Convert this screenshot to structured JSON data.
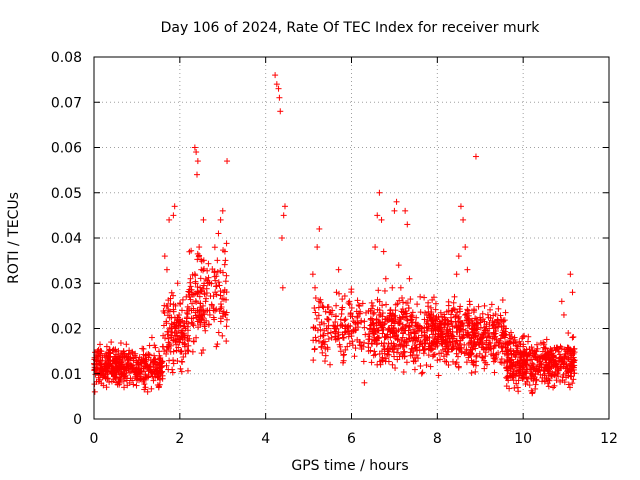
{
  "chart_data": {
    "type": "scatter",
    "title": "Day 106 of 2024, Rate Of TEC Index for receiver murk",
    "xlabel": "GPS time / hours",
    "ylabel": "ROTI / TECUs",
    "xlim": [
      0,
      12
    ],
    "ylim": [
      0,
      0.08
    ],
    "x_ticks": [
      0,
      2,
      4,
      6,
      8,
      10,
      12
    ],
    "x_tick_labels": [
      "0",
      "2",
      "4",
      "6",
      "8",
      "10",
      "12"
    ],
    "y_ticks": [
      0,
      0.01,
      0.02,
      0.03,
      0.04,
      0.05,
      0.06,
      0.07,
      0.08
    ],
    "y_tick_labels": [
      "0",
      "0.01",
      "0.02",
      "0.03",
      "0.04",
      "0.05",
      "0.06",
      "0.07",
      "0.08"
    ],
    "grid": true,
    "marker": "+",
    "color": "#ff0000",
    "series": [
      {
        "name": "ROTI",
        "points": [
          [
            0.02,
            0.006
          ],
          [
            0.05,
            0.012
          ],
          [
            0.08,
            0.015
          ],
          [
            0.12,
            0.01
          ],
          [
            0.15,
            0.013
          ],
          [
            0.2,
            0.011
          ],
          [
            0.25,
            0.014
          ],
          [
            0.3,
            0.016
          ],
          [
            0.35,
            0.012
          ],
          [
            0.4,
            0.017
          ],
          [
            0.45,
            0.013
          ],
          [
            0.5,
            0.009
          ],
          [
            0.55,
            0.011
          ],
          [
            0.6,
            0.008
          ],
          [
            0.65,
            0.01
          ],
          [
            0.7,
            0.007
          ],
          [
            0.75,
            0.012
          ],
          [
            0.8,
            0.013
          ],
          [
            0.85,
            0.009
          ],
          [
            0.9,
            0.011
          ],
          [
            0.95,
            0.014
          ],
          [
            1.0,
            0.01
          ],
          [
            1.05,
            0.012
          ],
          [
            1.1,
            0.009
          ],
          [
            1.15,
            0.013
          ],
          [
            1.2,
            0.007
          ],
          [
            1.25,
            0.006
          ],
          [
            1.3,
            0.011
          ],
          [
            1.35,
            0.018
          ],
          [
            1.4,
            0.014
          ],
          [
            1.45,
            0.012
          ],
          [
            1.5,
            0.01
          ],
          [
            1.55,
            0.013
          ],
          [
            1.6,
            0.016
          ],
          [
            1.65,
            0.036
          ],
          [
            1.7,
            0.033
          ],
          [
            1.75,
            0.044
          ],
          [
            1.8,
            0.02
          ],
          [
            1.85,
            0.045
          ],
          [
            1.88,
            0.047
          ],
          [
            1.9,
            0.025
          ],
          [
            1.95,
            0.03
          ],
          [
            2.0,
            0.022
          ],
          [
            2.05,
            0.024
          ],
          [
            2.1,
            0.018
          ],
          [
            2.15,
            0.027
          ],
          [
            2.2,
            0.015
          ],
          [
            2.25,
            0.031
          ],
          [
            2.3,
            0.021
          ],
          [
            2.35,
            0.06
          ],
          [
            2.38,
            0.059
          ],
          [
            2.4,
            0.054
          ],
          [
            2.42,
            0.057
          ],
          [
            2.45,
            0.038
          ],
          [
            2.5,
            0.033
          ],
          [
            2.55,
            0.044
          ],
          [
            2.6,
            0.026
          ],
          [
            2.65,
            0.03
          ],
          [
            2.7,
            0.023
          ],
          [
            2.75,
            0.025
          ],
          [
            2.8,
            0.022
          ],
          [
            2.85,
            0.016
          ],
          [
            2.9,
            0.041
          ],
          [
            2.95,
            0.044
          ],
          [
            3.0,
            0.046
          ],
          [
            3.05,
            0.037
          ],
          [
            3.1,
            0.057
          ],
          [
            4.22,
            0.076
          ],
          [
            4.26,
            0.074
          ],
          [
            4.3,
            0.073
          ],
          [
            4.32,
            0.071
          ],
          [
            4.34,
            0.068
          ],
          [
            4.38,
            0.04
          ],
          [
            4.4,
            0.029
          ],
          [
            4.42,
            0.045
          ],
          [
            4.45,
            0.047
          ],
          [
            5.1,
            0.032
          ],
          [
            5.15,
            0.029
          ],
          [
            5.2,
            0.038
          ],
          [
            5.25,
            0.042
          ],
          [
            5.3,
            0.016
          ],
          [
            5.35,
            0.017
          ],
          [
            5.4,
            0.014
          ],
          [
            5.45,
            0.022
          ],
          [
            5.5,
            0.012
          ],
          [
            5.55,
            0.024
          ],
          [
            5.6,
            0.02
          ],
          [
            5.65,
            0.028
          ],
          [
            5.7,
            0.033
          ],
          [
            5.75,
            0.022
          ],
          [
            5.8,
            0.018
          ],
          [
            5.85,
            0.02
          ],
          [
            5.9,
            0.016
          ],
          [
            5.95,
            0.026
          ],
          [
            6.0,
            0.019
          ],
          [
            6.1,
            0.021
          ],
          [
            6.2,
            0.017
          ],
          [
            6.3,
            0.008
          ],
          [
            6.4,
            0.015
          ],
          [
            6.5,
            0.025
          ],
          [
            6.55,
            0.038
          ],
          [
            6.6,
            0.045
          ],
          [
            6.65,
            0.05
          ],
          [
            6.7,
            0.044
          ],
          [
            6.75,
            0.037
          ],
          [
            6.8,
            0.031
          ],
          [
            6.85,
            0.018
          ],
          [
            6.9,
            0.024
          ],
          [
            6.95,
            0.029
          ],
          [
            7.0,
            0.046
          ],
          [
            7.05,
            0.048
          ],
          [
            7.1,
            0.034
          ],
          [
            7.15,
            0.029
          ],
          [
            7.2,
            0.02
          ],
          [
            7.25,
            0.046
          ],
          [
            7.3,
            0.043
          ],
          [
            7.35,
            0.031
          ],
          [
            7.4,
            0.022
          ],
          [
            7.45,
            0.015
          ],
          [
            7.5,
            0.018
          ],
          [
            7.6,
            0.027
          ],
          [
            7.7,
            0.022
          ],
          [
            7.8,
            0.016
          ],
          [
            7.9,
            0.02
          ],
          [
            8.0,
            0.013
          ],
          [
            8.1,
            0.018
          ],
          [
            8.2,
            0.022
          ],
          [
            8.3,
            0.017
          ],
          [
            8.4,
            0.027
          ],
          [
            8.45,
            0.032
          ],
          [
            8.5,
            0.036
          ],
          [
            8.55,
            0.047
          ],
          [
            8.6,
            0.044
          ],
          [
            8.65,
            0.038
          ],
          [
            8.7,
            0.033
          ],
          [
            8.75,
            0.026
          ],
          [
            8.8,
            0.02
          ],
          [
            8.85,
            0.016
          ],
          [
            8.9,
            0.058
          ],
          [
            8.95,
            0.021
          ],
          [
            9.0,
            0.017
          ],
          [
            9.1,
            0.025
          ],
          [
            9.2,
            0.019
          ],
          [
            9.3,
            0.014
          ],
          [
            9.4,
            0.022
          ],
          [
            9.5,
            0.016
          ],
          [
            9.6,
            0.02
          ],
          [
            9.7,
            0.013
          ],
          [
            9.8,
            0.018
          ],
          [
            9.9,
            0.012
          ],
          [
            10.0,
            0.016
          ],
          [
            10.1,
            0.014
          ],
          [
            10.2,
            0.01
          ],
          [
            10.3,
            0.015
          ],
          [
            10.4,
            0.012
          ],
          [
            10.5,
            0.014
          ],
          [
            10.6,
            0.011
          ],
          [
            10.7,
            0.013
          ],
          [
            10.8,
            0.01
          ],
          [
            10.9,
            0.026
          ],
          [
            10.95,
            0.023
          ],
          [
            11.0,
            0.015
          ],
          [
            11.05,
            0.019
          ],
          [
            11.1,
            0.032
          ],
          [
            11.15,
            0.028
          ],
          [
            11.2,
            0.013
          ]
        ],
        "dense_bands": [
          {
            "x0": 0.0,
            "x1": 1.6,
            "ymin": 0.005,
            "ymax": 0.018,
            "n": 420
          },
          {
            "x0": 1.6,
            "x1": 2.2,
            "ymin": 0.008,
            "ymax": 0.03,
            "n": 140
          },
          {
            "x0": 2.2,
            "x1": 3.1,
            "ymin": 0.012,
            "ymax": 0.04,
            "n": 170
          },
          {
            "x0": 5.1,
            "x1": 6.4,
            "ymin": 0.01,
            "ymax": 0.03,
            "n": 160
          },
          {
            "x0": 6.4,
            "x1": 8.4,
            "ymin": 0.008,
            "ymax": 0.03,
            "n": 520
          },
          {
            "x0": 8.4,
            "x1": 9.6,
            "ymin": 0.008,
            "ymax": 0.028,
            "n": 300
          },
          {
            "x0": 9.6,
            "x1": 11.2,
            "ymin": 0.005,
            "ymax": 0.02,
            "n": 460
          }
        ]
      }
    ]
  }
}
